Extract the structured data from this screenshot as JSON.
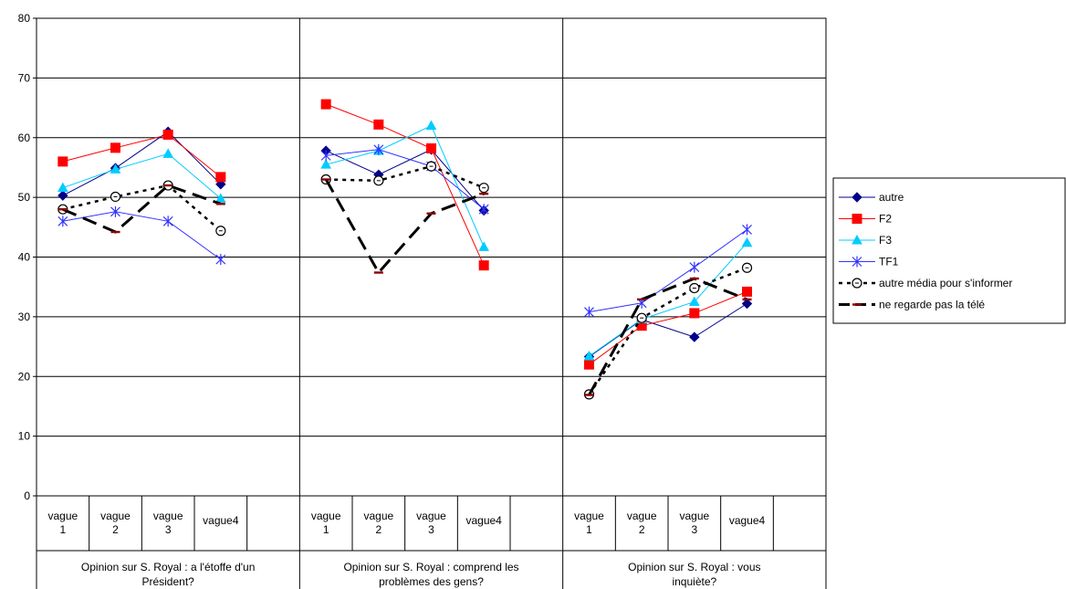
{
  "chart_data": {
    "type": "line",
    "title": "",
    "xlabel": "",
    "ylabel": "",
    "ylim": [
      0,
      80
    ],
    "yticks": [
      0,
      10,
      20,
      30,
      40,
      50,
      60,
      70,
      80
    ],
    "grid": true,
    "legend_position": "right",
    "groups": [
      {
        "label_lines": [
          "Opinion sur S. Royal : a l'étoffe d'un",
          "Président?"
        ],
        "categories": [
          [
            "vague",
            "1"
          ],
          [
            "vague",
            "2"
          ],
          [
            "vague",
            "3"
          ],
          [
            "vague4"
          ]
        ]
      },
      {
        "label_lines": [
          "Opinion sur S. Royal : comprend les",
          "problèmes des gens?"
        ],
        "categories": [
          [
            "vague",
            "1"
          ],
          [
            "vague",
            "2"
          ],
          [
            "vague",
            "3"
          ],
          [
            "vague4"
          ]
        ]
      },
      {
        "label_lines": [
          "Opinion sur S. Royal : vous",
          "inquiète?"
        ],
        "categories": [
          [
            "vague",
            "1"
          ],
          [
            "vague",
            "2"
          ],
          [
            "vague",
            "3"
          ],
          [
            "vague4"
          ]
        ]
      }
    ],
    "series": [
      {
        "name": "autre",
        "color": "#00008b",
        "marker": "diamond",
        "dash": "solid",
        "values": [
          [
            50.3,
            54.9,
            61.0,
            52.2
          ],
          [
            57.8,
            53.8,
            58.0,
            47.8
          ],
          [
            23.3,
            29.5,
            26.6,
            32.2
          ]
        ]
      },
      {
        "name": "F2",
        "color": "#ff0000",
        "marker": "square",
        "dash": "solid",
        "values": [
          [
            56.0,
            58.3,
            60.5,
            53.4
          ],
          [
            65.6,
            62.2,
            58.2,
            38.6
          ],
          [
            22.0,
            28.5,
            30.6,
            34.2
          ]
        ]
      },
      {
        "name": "F3",
        "color": "#00ccff",
        "marker": "triangle",
        "dash": "solid",
        "values": [
          [
            51.6,
            54.7,
            57.3,
            49.8
          ],
          [
            55.5,
            57.8,
            62.0,
            41.7
          ],
          [
            23.4,
            29.6,
            32.5,
            42.4
          ]
        ]
      },
      {
        "name": "TF1",
        "color": "#3333ff",
        "marker": "asterisk",
        "dash": "solid",
        "values": [
          [
            46.0,
            47.6,
            46.0,
            39.6
          ],
          [
            57.0,
            58.0,
            55.2,
            48.0
          ],
          [
            30.8,
            32.3,
            38.3,
            44.6
          ]
        ]
      },
      {
        "name": "autre média pour s'informer",
        "color": "#000000",
        "marker": "circle",
        "dash": "dotted",
        "values": [
          [
            48.0,
            50.1,
            52.0,
            44.4
          ],
          [
            53.0,
            52.8,
            55.2,
            51.6
          ],
          [
            17.0,
            29.8,
            34.8,
            38.2
          ]
        ]
      },
      {
        "name": "ne regarde pas la télé",
        "color": "#000000",
        "marker": "dash",
        "dash": "dashed",
        "values": [
          [
            48.0,
            44.2,
            52.0,
            48.9
          ],
          [
            53.0,
            37.4,
            47.3,
            50.6
          ],
          [
            16.9,
            32.9,
            36.4,
            32.9
          ]
        ]
      }
    ]
  }
}
